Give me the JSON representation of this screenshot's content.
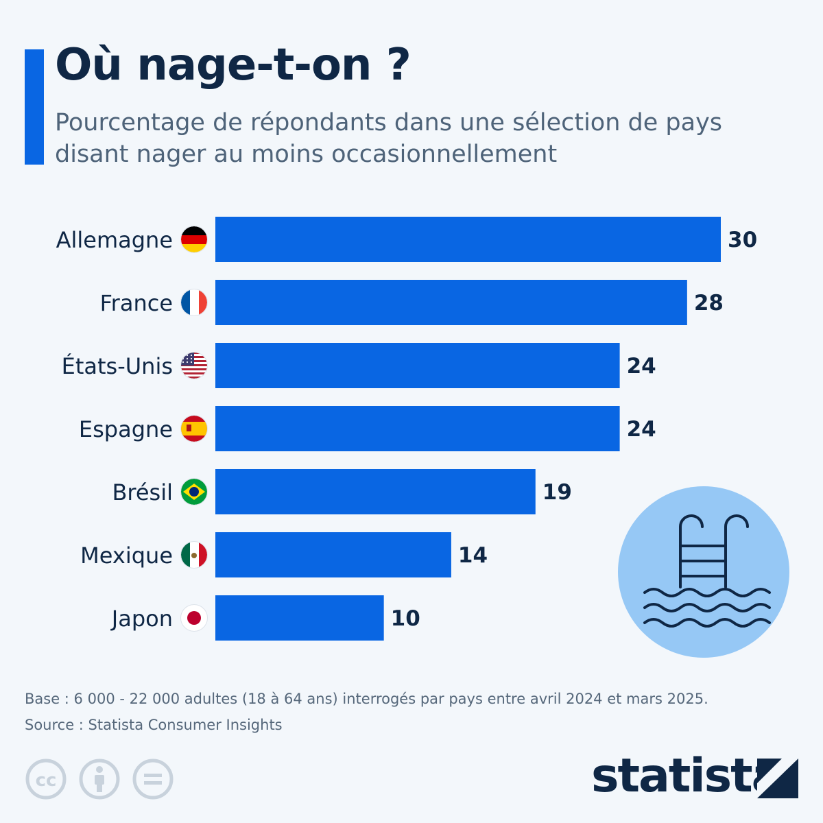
{
  "header": {
    "title": "Où nage-t-on ?",
    "subtitle": "Pourcentage de répondants dans une sélection de pays disant nager au moins occasionnellement"
  },
  "chart_data": {
    "type": "bar",
    "orientation": "horizontal",
    "categories": [
      "Allemagne",
      "France",
      "États-Unis",
      "Espagne",
      "Brésil",
      "Mexique",
      "Japon"
    ],
    "values": [
      30,
      28,
      24,
      24,
      19,
      14,
      10
    ],
    "flags": [
      "germany-flag-icon",
      "france-flag-icon",
      "usa-flag-icon",
      "spain-flag-icon",
      "brazil-flag-icon",
      "mexico-flag-icon",
      "japan-flag-icon"
    ],
    "xlim": [
      0,
      30
    ],
    "grid": false,
    "bar_color": "#0966e3"
  },
  "illustration": {
    "icon": "swimming-pool-icon",
    "color": "#96c8f5"
  },
  "footer": {
    "base": "Base : 6 000 - 22 000 adultes (18 à 64 ans) interrogés par pays entre avril 2024 et mars 2025.",
    "source": "Source : Statista Consumer Insights",
    "license_icons": [
      "cc-icon",
      "attribution-icon",
      "no-derivatives-icon"
    ],
    "brand": "statista"
  },
  "colors": {
    "accent": "#0966e3",
    "title": "#0f2745",
    "text": "#4e6379",
    "background": "#f3f7fb"
  }
}
